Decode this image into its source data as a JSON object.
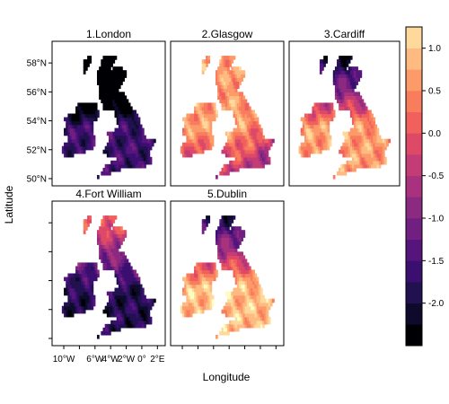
{
  "chart_data": {
    "type": "heatmap",
    "xlabel": "Longitude",
    "ylabel": "Latitude",
    "panels": [
      {
        "label": "1.London",
        "dominant_bin": 3,
        "gradient": "north_low"
      },
      {
        "label": "2.Glasgow",
        "dominant_bin": 12,
        "gradient": "south_low"
      },
      {
        "label": "3.Cardiff",
        "dominant_bin": 12,
        "gradient": "north_low"
      },
      {
        "label": "4.Fort William",
        "dominant_bin": 2,
        "gradient": "north_high"
      },
      {
        "label": "5.Dublin",
        "dominant_bin": 13,
        "gradient": "north_low"
      }
    ],
    "x_ticks": [
      {
        "value": -10,
        "label": "10°W"
      },
      {
        "value": -8,
        "label": ""
      },
      {
        "value": -6,
        "label": "6°W"
      },
      {
        "value": -4,
        "label": "4°W"
      },
      {
        "value": -2,
        "label": "2°W"
      },
      {
        "value": 0,
        "label": "0°"
      },
      {
        "value": 2,
        "label": "2°E"
      }
    ],
    "y_ticks": [
      {
        "value": 50,
        "label": "50°N"
      },
      {
        "value": 52,
        "label": "52°N"
      },
      {
        "value": 54,
        "label": "54°N"
      },
      {
        "value": 56,
        "label": "56°N"
      },
      {
        "value": 58,
        "label": "58°N"
      }
    ],
    "xlim": [
      -11.5,
      3.0
    ],
    "ylim": [
      49.5,
      59.5
    ],
    "colorbar": {
      "breaks": [
        -2.5,
        -2.25,
        -2.0,
        -1.75,
        -1.5,
        -1.25,
        -1.0,
        -0.75,
        -0.5,
        -0.25,
        0.0,
        0.25,
        0.5,
        0.75,
        1.0,
        1.25
      ],
      "tick_values": [
        -2.0,
        -1.5,
        -1.0,
        -0.5,
        0.0,
        0.5,
        1.0
      ],
      "tick_labels": [
        "-2.0",
        "-1.5",
        "-1.0",
        "-0.5",
        "0.0",
        "0.5",
        "1.0"
      ],
      "colors": [
        "#000004",
        "#0e0a2b",
        "#221150",
        "#3b0f70",
        "#56147d",
        "#711f81",
        "#8c2981",
        "#a8327d",
        "#c43c75",
        "#de4968",
        "#f1605d",
        "#f87d5c",
        "#fd9a6a",
        "#febb81",
        "#fed99b",
        "#fcfdbf"
      ]
    }
  }
}
